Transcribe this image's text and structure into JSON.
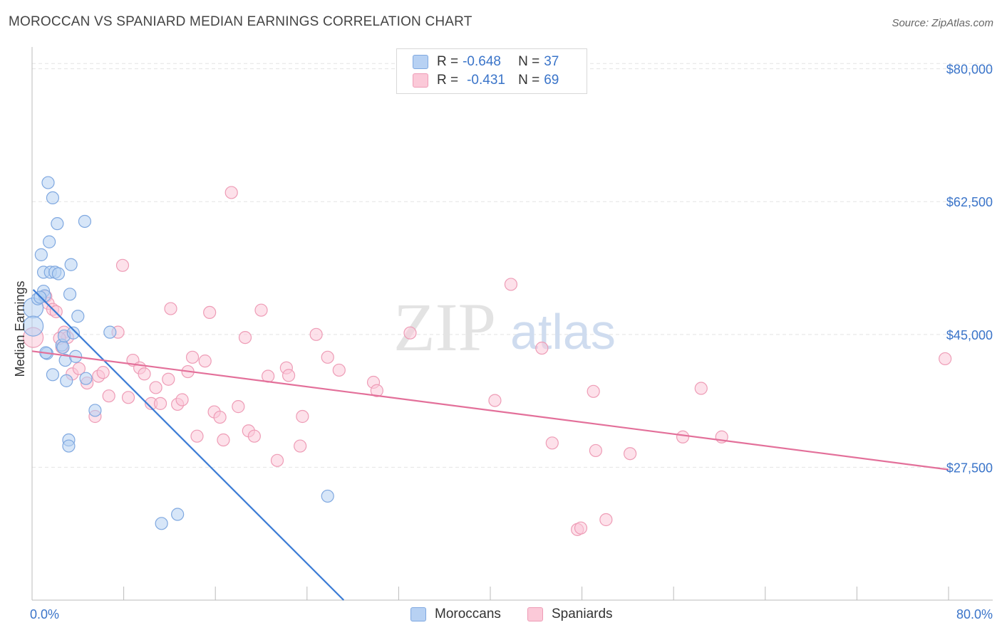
{
  "title": "MOROCCAN VS SPANIARD MEDIAN EARNINGS CORRELATION CHART",
  "source": "Source: ZipAtlas.com",
  "watermark": {
    "zip": "ZIP",
    "atlas": "atlas"
  },
  "legend_top": [
    {
      "r_label": "R =",
      "r_value": "-0.648",
      "n_label": "N =",
      "n_value": "37",
      "fill": "#b7d1f3",
      "stroke": "#7fa8e0"
    },
    {
      "r_label": "R =",
      "r_value": "-0.431",
      "n_label": "N =",
      "n_value": "69",
      "fill": "#fbc9d8",
      "stroke": "#ee9cb6"
    }
  ],
  "legend_bottom": [
    {
      "label": "Moroccans",
      "fill": "#b7d1f3",
      "stroke": "#7fa8e0"
    },
    {
      "label": "Spaniards",
      "fill": "#fbc9d8",
      "stroke": "#ee9cb6"
    }
  ],
  "chart_data": {
    "type": "scatter",
    "title": "MOROCCAN VS SPANIARD MEDIAN EARNINGS CORRELATION CHART",
    "xlabel": "",
    "ylabel": "Median Earnings",
    "xlim": [
      0,
      80
    ],
    "ylim": [
      10000,
      82500
    ],
    "x_tick_labels": [
      "0.0%",
      "80.0%"
    ],
    "y_ticks": [
      27500,
      45000,
      62500,
      80000
    ],
    "y_tick_labels": [
      "$27,500",
      "$45,000",
      "$62,500",
      "$80,000"
    ],
    "grid": true,
    "series": [
      {
        "name": "Moroccans",
        "color": "#7fa8e0",
        "fill": "#b7d1f3",
        "line_color": "#3a7bd5",
        "trend": {
          "x": [
            0.1,
            27.2
          ],
          "y": [
            50900,
            10000
          ]
        },
        "points": [
          [
            0.1,
            48500
          ],
          [
            0.1,
            46100
          ],
          [
            0.5,
            49700
          ],
          [
            0.8,
            55500
          ],
          [
            1.0,
            53200
          ],
          [
            1.0,
            50700
          ],
          [
            1.1,
            50100
          ],
          [
            1.3,
            42500
          ],
          [
            1.4,
            65000
          ],
          [
            1.5,
            57200
          ],
          [
            1.6,
            53200
          ],
          [
            1.8,
            63000
          ],
          [
            1.8,
            39700
          ],
          [
            2.0,
            53200
          ],
          [
            2.2,
            59600
          ],
          [
            2.3,
            53000
          ],
          [
            2.6,
            43600
          ],
          [
            2.7,
            43300
          ],
          [
            2.8,
            44800
          ],
          [
            2.9,
            41600
          ],
          [
            3.0,
            38900
          ],
          [
            3.2,
            31100
          ],
          [
            3.2,
            30300
          ],
          [
            3.3,
            50300
          ],
          [
            3.4,
            54200
          ],
          [
            3.6,
            45200
          ],
          [
            3.8,
            42100
          ],
          [
            4.0,
            47400
          ],
          [
            4.6,
            59900
          ],
          [
            4.7,
            39200
          ],
          [
            5.5,
            35000
          ],
          [
            6.8,
            45300
          ],
          [
            11.3,
            20100
          ],
          [
            12.7,
            21300
          ],
          [
            25.8,
            23700
          ],
          [
            0.7,
            49900
          ],
          [
            1.2,
            42600
          ]
        ]
      },
      {
        "name": "Spaniards",
        "color": "#ee9cb6",
        "fill": "#fbc9d8",
        "line_color": "#e3709a",
        "trend": {
          "x": [
            0,
            80
          ],
          "y": [
            42800,
            27200
          ]
        },
        "points": [
          [
            0.1,
            44600
          ],
          [
            1.2,
            50000
          ],
          [
            1.4,
            49100
          ],
          [
            1.8,
            48300
          ],
          [
            2.1,
            48000
          ],
          [
            2.6,
            43300
          ],
          [
            2.8,
            45300
          ],
          [
            3.1,
            44600
          ],
          [
            3.5,
            39800
          ],
          [
            4.1,
            40500
          ],
          [
            4.8,
            38600
          ],
          [
            5.5,
            34200
          ],
          [
            5.8,
            39500
          ],
          [
            6.2,
            40000
          ],
          [
            6.7,
            36900
          ],
          [
            7.5,
            45300
          ],
          [
            7.9,
            54100
          ],
          [
            8.4,
            36700
          ],
          [
            8.8,
            41600
          ],
          [
            9.4,
            40600
          ],
          [
            9.8,
            39800
          ],
          [
            10.4,
            35900
          ],
          [
            10.8,
            38000
          ],
          [
            11.2,
            35900
          ],
          [
            11.9,
            39100
          ],
          [
            12.1,
            48400
          ],
          [
            12.7,
            35800
          ],
          [
            13.1,
            36400
          ],
          [
            13.6,
            40100
          ],
          [
            14.0,
            42000
          ],
          [
            14.4,
            31600
          ],
          [
            15.1,
            41500
          ],
          [
            15.5,
            47900
          ],
          [
            15.9,
            34800
          ],
          [
            16.4,
            34100
          ],
          [
            16.7,
            31100
          ],
          [
            17.4,
            63700
          ],
          [
            18.0,
            35500
          ],
          [
            18.6,
            44600
          ],
          [
            18.9,
            32300
          ],
          [
            19.4,
            31600
          ],
          [
            20.0,
            48200
          ],
          [
            20.6,
            39500
          ],
          [
            21.4,
            28400
          ],
          [
            22.2,
            40600
          ],
          [
            22.4,
            39600
          ],
          [
            23.4,
            30300
          ],
          [
            23.6,
            34200
          ],
          [
            24.8,
            45000
          ],
          [
            25.8,
            42000
          ],
          [
            26.8,
            40300
          ],
          [
            29.8,
            38700
          ],
          [
            30.1,
            37600
          ],
          [
            33.0,
            45200
          ],
          [
            40.4,
            36300
          ],
          [
            41.8,
            51600
          ],
          [
            44.5,
            43200
          ],
          [
            45.4,
            30700
          ],
          [
            47.6,
            19300
          ],
          [
            47.9,
            19500
          ],
          [
            49.0,
            37500
          ],
          [
            49.2,
            29700
          ],
          [
            50.1,
            20600
          ],
          [
            52.2,
            29300
          ],
          [
            56.8,
            31500
          ],
          [
            58.4,
            37900
          ],
          [
            60.2,
            31500
          ],
          [
            79.7,
            41800
          ],
          [
            2.4,
            44500
          ]
        ]
      }
    ]
  }
}
